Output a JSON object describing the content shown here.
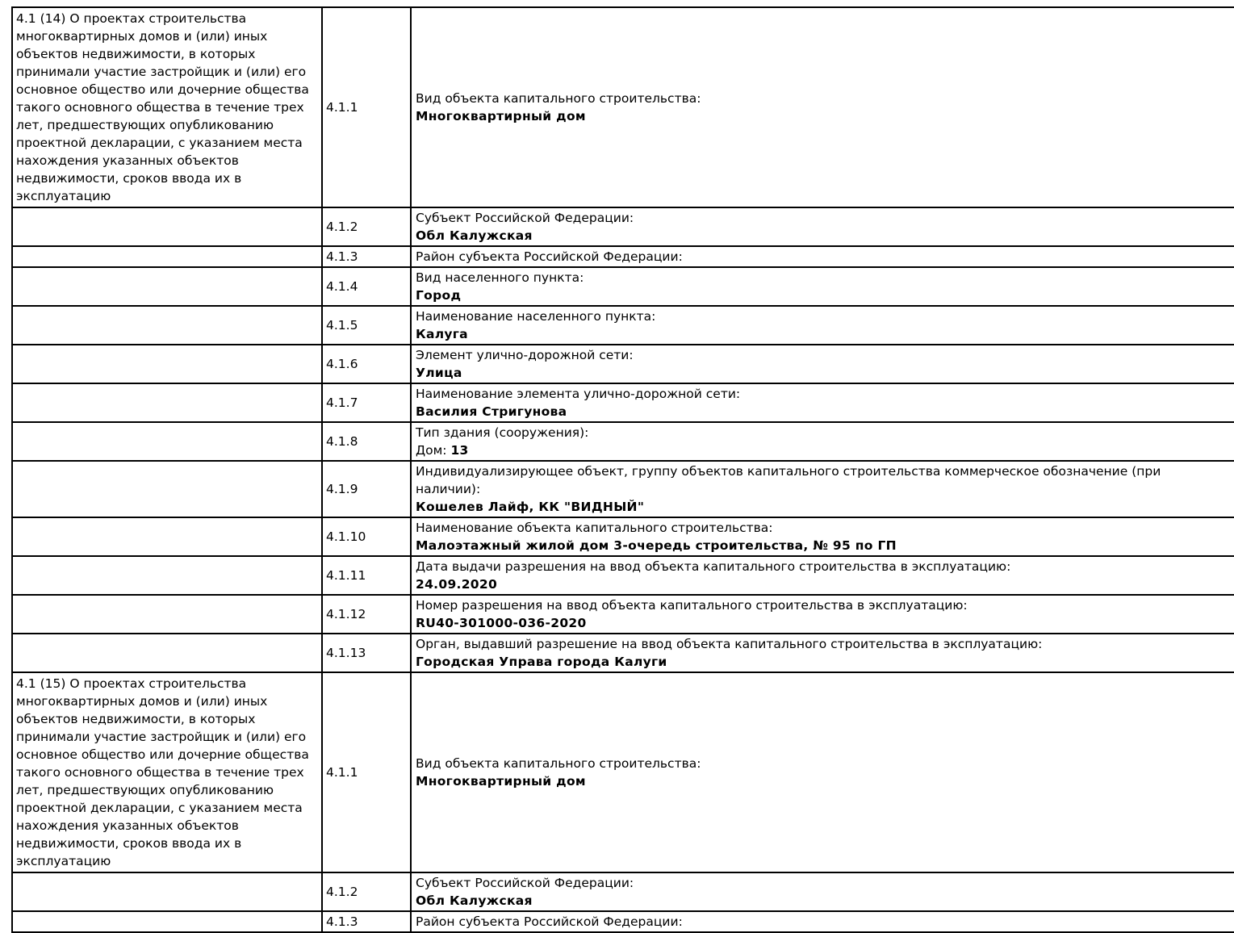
{
  "colors": {
    "border": "#000000",
    "text": "#000000",
    "background": "#ffffff"
  },
  "table": {
    "blocks": [
      {
        "description": "4.1 (14) О проектах строительства многоквартирных домов и (или) иных объектов недвижимости, в которых принимали участие застройщик и (или) его основное общество или дочерние общества такого основного общества в течение трех лет, предшествующих опубликованию проектной декларации, с указанием места нахождения указанных объектов недвижимости, сроков ввода их в эксплуатацию",
        "rows": [
          {
            "num": "4.1.1",
            "label": "Вид объекта капитального строительства:",
            "value": "Многоквартирный дом"
          },
          {
            "num": "4.1.2",
            "label": "Субъект Российской Федерации:",
            "value": "Обл Калужская"
          },
          {
            "num": "4.1.3",
            "label": "Район субъекта Российской Федерации:",
            "value": ""
          },
          {
            "num": "4.1.4",
            "label": "Вид населенного пункта:",
            "value": "Город"
          },
          {
            "num": "4.1.5",
            "label": "Наименование населенного пункта:",
            "value": "Калуга"
          },
          {
            "num": "4.1.6",
            "label": "Элемент улично-дорожной сети:",
            "value": "Улица"
          },
          {
            "num": "4.1.7",
            "label": "Наименование элемента улично-дорожной сети:",
            "value": "Василия Стригунова"
          },
          {
            "num": "4.1.8",
            "label": "Тип здания (сооружения):",
            "value_prefix": "Дом: ",
            "value": "13"
          },
          {
            "num": "4.1.9",
            "label": "Индивидуализирующее объект, группу объектов капитального строительства коммерческое обозначение (при наличии):",
            "value": "Кошелев Лайф, КК \"ВИДНЫЙ\""
          },
          {
            "num": "4.1.10",
            "label": "Наименование объекта капитального строительства:",
            "value": "Малоэтажный жилой дом 3-очередь строительства, № 95 по ГП"
          },
          {
            "num": "4.1.11",
            "label": "Дата выдачи разрешения на ввод объекта капитального строительства в эксплуатацию:",
            "value": "24.09.2020"
          },
          {
            "num": "4.1.12",
            "label": "Номер разрешения на ввод объекта капитального строительства в эксплуатацию:",
            "value": "RU40-301000-036-2020"
          },
          {
            "num": "4.1.13",
            "label": "Орган, выдавший разрешение на ввод объекта капитального строительства в эксплуатацию:",
            "value": "Городская Управа города Калуги"
          }
        ]
      },
      {
        "description": "4.1 (15) О проектах строительства многоквартирных домов и (или) иных объектов недвижимости, в которых принимали участие застройщик и (или) его основное общество или дочерние общества такого основного общества в течение трех лет, предшествующих опубликованию проектной декларации, с указанием места нахождения указанных объектов недвижимости, сроков ввода их в эксплуатацию",
        "rows": [
          {
            "num": "4.1.1",
            "label": "Вид объекта капитального строительства:",
            "value": "Многоквартирный дом"
          },
          {
            "num": "4.1.2",
            "label": "Субъект Российской Федерации:",
            "value": "Обл Калужская"
          },
          {
            "num": "4.1.3",
            "label": "Район субъекта Российской Федерации:",
            "value": ""
          }
        ]
      }
    ]
  }
}
